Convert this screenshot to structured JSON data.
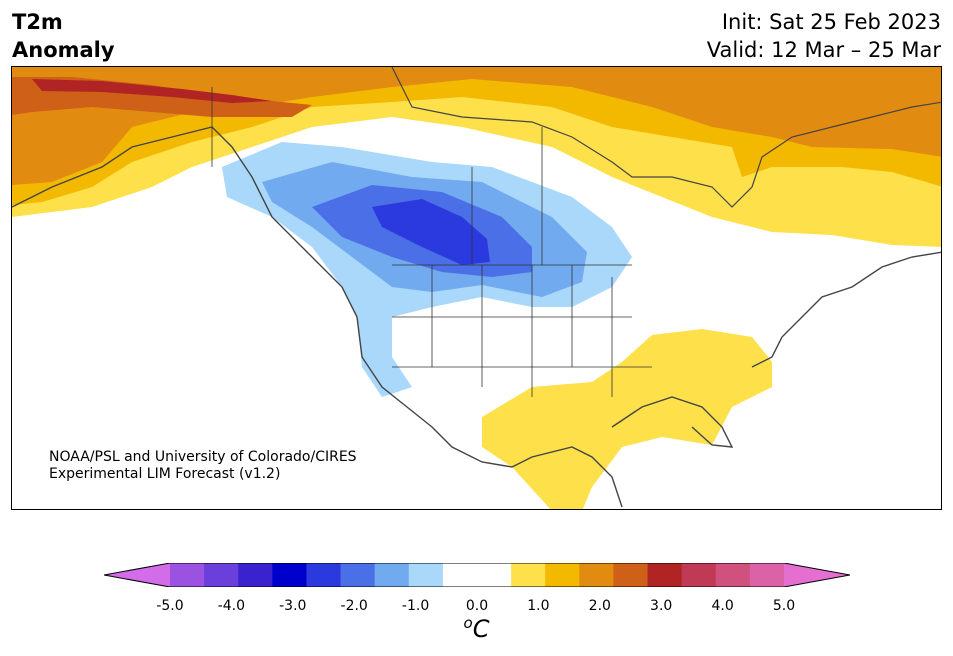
{
  "title": {
    "line1": "T2m",
    "line2": "Anomaly"
  },
  "dates": {
    "init": "Init: Sat 25 Feb 2023",
    "valid": "Valid: 12 Mar – 25 Mar"
  },
  "credit": {
    "line1": "NOAA/PSL and University of Colorado/CIRES",
    "line2": "Experimental LIM Forecast (v1.2)"
  },
  "colorbar": {
    "unit_base": "C",
    "unit_sup": "o",
    "tick_labels": [
      "-5.0",
      "-4.0",
      "-3.0",
      "-2.0",
      "-1.0",
      "0.0",
      "1.0",
      "2.0",
      "3.0",
      "4.0",
      "5.0"
    ],
    "colors": [
      "#d36ce8",
      "#9b52e0",
      "#6a3fdc",
      "#3a22d0",
      "#0000cc",
      "#2a3ade",
      "#4b6fe6",
      "#72aaf0",
      "#a9d8fa",
      "#ffffff",
      "#ffffff",
      "#fde04a",
      "#f3b800",
      "#e18b10",
      "#cf6018",
      "#b02424",
      "#c03a55",
      "#d0507e",
      "#dc62a8",
      "#e46fd0"
    ]
  },
  "anomaly_colors": {
    "cold_deep": "#2a3ade",
    "cold_mid": "#4b6fe6",
    "cold_light": "#72aaf0",
    "cold_faint": "#a9d8fa",
    "warm_faint": "#fde04a",
    "warm_light": "#f3b800",
    "warm_mid": "#e18b10",
    "warm_strong": "#cf6018",
    "warm_deep": "#b02424"
  }
}
